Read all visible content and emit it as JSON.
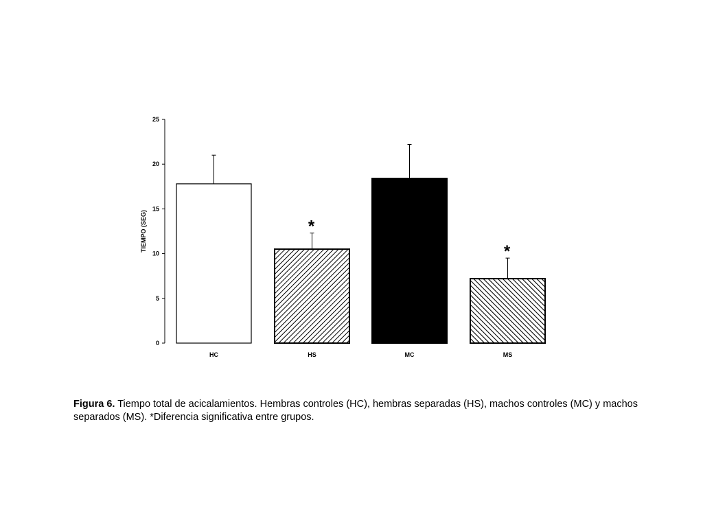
{
  "chart_data": {
    "type": "bar",
    "categories": [
      "HC",
      "HS",
      "MC",
      "MS"
    ],
    "values": [
      17.8,
      10.5,
      18.4,
      7.2
    ],
    "errors": [
      3.2,
      1.8,
      3.8,
      2.3
    ],
    "significant": [
      false,
      true,
      false,
      true
    ],
    "significance_marker": "*",
    "fills": [
      "white",
      "hatch-right",
      "solid-black",
      "hatch-left"
    ],
    "ylabel": "TIEMPO (SEG)",
    "xlabel": "",
    "ylim": [
      0,
      25
    ],
    "yticks": [
      0,
      5,
      10,
      15,
      20,
      25
    ],
    "grid": false,
    "colors": {
      "bar_edge": "#000000",
      "solid": "#000000",
      "background": "#ffffff"
    }
  },
  "caption": {
    "label": "Figura 6.",
    "text": " Tiempo total de acicalamientos. Hembras controles (HC), hembras separadas (HS), machos controles (MC) y machos separados (MS). *Diferencia significativa entre grupos."
  }
}
